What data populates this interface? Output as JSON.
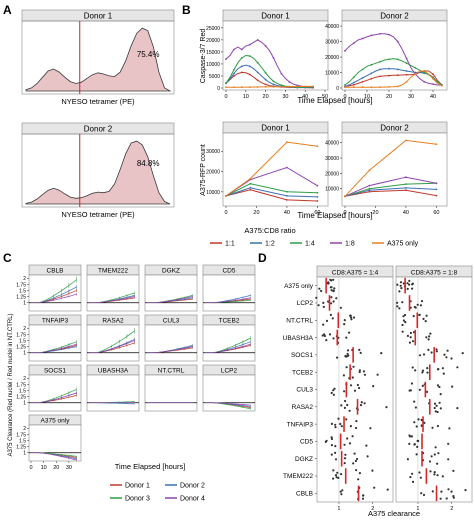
{
  "panel_letters": [
    "A",
    "B",
    "C",
    "D"
  ],
  "colors": {
    "hist_fill": "#e8c4c6",
    "hist_line": "#3a3a3a",
    "gate": "#c0272d",
    "donor1": "#c0392b",
    "donor2": "#3b6fb6",
    "donor3": "#2e9e44",
    "donor4": "#8e44ad",
    "r11": "#c0392b",
    "r12": "#3b6fb6",
    "r14": "#2e9e44",
    "r18": "#8e44ad",
    "ronly": "#e67e22",
    "strip_bg": "#e6e6e6",
    "median": "#d62728",
    "point": "#333333"
  },
  "chart_data": [
    {
      "id": "A",
      "type": "area",
      "xlabel": "NYESO tetramer (PE)",
      "panels": [
        {
          "title": "Donor 1",
          "percent": "75.4%",
          "density": [
            0.02,
            0.05,
            0.12,
            0.22,
            0.32,
            0.35,
            0.3,
            0.22,
            0.15,
            0.12,
            0.14,
            0.2,
            0.26,
            0.29,
            0.27,
            0.24,
            0.23,
            0.3,
            0.48,
            0.72,
            0.92,
            1.0,
            0.96,
            0.7,
            0.3,
            0.05,
            0.0
          ]
        },
        {
          "title": "Donor 2",
          "percent": "84.8%",
          "density": [
            0.01,
            0.03,
            0.08,
            0.15,
            0.22,
            0.25,
            0.22,
            0.16,
            0.11,
            0.09,
            0.1,
            0.13,
            0.17,
            0.19,
            0.18,
            0.2,
            0.32,
            0.55,
            0.8,
            0.97,
            1.0,
            0.94,
            0.75,
            0.45,
            0.18,
            0.04,
            0.0
          ]
        }
      ]
    },
    {
      "id": "B",
      "type": "line",
      "xlabel": "Time Elapsed [hours]",
      "legend_title": "A375:CD8 ratio",
      "legend_items": [
        "1:1",
        "1:2",
        "1:4",
        "1:8",
        "A375 only"
      ],
      "top": {
        "ylabel": "Caspase-3/7 Red",
        "x": [
          0,
          2,
          4,
          6,
          8,
          10,
          12,
          14,
          16,
          18,
          20,
          22,
          24,
          26,
          28,
          30,
          32,
          34,
          36,
          38,
          40,
          42,
          44
        ],
        "panels": [
          {
            "title": "Donor 1",
            "xlim": [
              0,
              50
            ],
            "xticks": [
              0,
              10,
              20,
              30,
              40,
              50
            ],
            "ylim": [
              0,
              27000
            ],
            "yticks": [
              0,
              5000,
              10000,
              15000,
              20000,
              25000
            ],
            "series": [
              {
                "name": "1:1",
                "y": [
                  2000,
                  3500,
                  5000,
                  6000,
                  6500,
                  6300,
                  5600,
                  4500,
                  3200,
                  2200,
                  1500,
                  1000,
                  700,
                  500,
                  400,
                  300,
                  250,
                  200,
                  180,
                  160,
                  150,
                  140,
                  130
                ]
              },
              {
                "name": "1:2",
                "y": [
                  2000,
                  3800,
                  6000,
                  8000,
                  9000,
                  9500,
                  9000,
                  8000,
                  6500,
                  5000,
                  3500,
                  2300,
                  1500,
                  1000,
                  700,
                  500,
                  400,
                  300,
                  250,
                  220,
                  200,
                  180,
                  170
                ]
              },
              {
                "name": "1:4",
                "y": [
                  2000,
                  4500,
                  7500,
                  10500,
                  12500,
                  13500,
                  13300,
                  12300,
                  10500,
                  8500,
                  6300,
                  4300,
                  2800,
                  1800,
                  1200,
                  800,
                  600,
                  450,
                  350,
                  300,
                  270,
                  250,
                  230
                ]
              },
              {
                "name": "1:8",
                "y": [
                  12000,
                  13500,
                  16000,
                  17000,
                  16000,
                  17500,
                  18000,
                  19000,
                  20000,
                  19000,
                  17500,
                  15500,
                  12500,
                  9000,
                  6000,
                  4000,
                  2500,
                  1600,
                  1100,
                  800,
                  600,
                  500,
                  450
                ]
              },
              {
                "name": "A375 only",
                "y": [
                  300,
                  300,
                  300,
                  320,
                  340,
                  360,
                  380,
                  400,
                  420,
                  440,
                  460,
                  480,
                  500,
                  520,
                  540,
                  560,
                  580,
                  600,
                  620,
                  640,
                  650,
                  660,
                  670
                ]
              }
            ]
          },
          {
            "title": "Donor 2",
            "xlim": [
              0,
              45
            ],
            "xticks": [
              0,
              10,
              20,
              30,
              40
            ],
            "ylim": [
              0,
              42000
            ],
            "yticks": [
              0,
              10000,
              20000,
              30000,
              40000
            ],
            "series": [
              {
                "name": "1:1",
                "y": [
                  1000,
                  1500,
                  2000,
                  3000,
                  4000,
                  5000,
                  6000,
                  7000,
                  7500,
                  7800,
                  8000,
                  8200,
                  8300,
                  8400,
                  8500,
                  8600,
                  9000,
                  10000,
                  11000,
                  11000,
                  9000,
                  5000,
                  2000
                ]
              },
              {
                "name": "1:2",
                "y": [
                  1000,
                  2000,
                  3500,
                  5000,
                  6500,
                  8000,
                  9500,
                  11000,
                  12000,
                  12500,
                  12500,
                  12500,
                  12000,
                  11500,
                  11000,
                  10500,
                  10000,
                  10000,
                  9500,
                  9000,
                  7000,
                  4000,
                  2000
                ]
              },
              {
                "name": "1:4",
                "y": [
                  2000,
                  4000,
                  7000,
                  10000,
                  12000,
                  14000,
                  15000,
                  16000,
                  17000,
                  18000,
                  18500,
                  19000,
                  18500,
                  17500,
                  16000,
                  14500,
                  13000,
                  11500,
                  10000,
                  8500,
                  6500,
                  4000,
                  2000
                ]
              },
              {
                "name": "1:8",
                "y": [
                  24000,
                  27000,
                  29000,
                  31000,
                  32000,
                  33000,
                  34000,
                  34500,
                  35000,
                  35000,
                  34500,
                  33000,
                  30000,
                  25000,
                  19000,
                  13000,
                  9000,
                  6000,
                  4000,
                  3000,
                  2500,
                  2000,
                  1800
                ]
              },
              {
                "name": "A375 only",
                "y": [
                  500,
                  500,
                  500,
                  500,
                  500,
                  500,
                  500,
                  500,
                  600,
                  600,
                  700,
                  800,
                  1000,
                  2000,
                  4000,
                  7000,
                  9000,
                  11000,
                  11000,
                  9000,
                  6000,
                  3000,
                  1500
                ]
              }
            ]
          }
        ]
      },
      "bottom": {
        "ylabel": "A375-RFP count",
        "x": [
          0,
          16,
          40,
          60
        ],
        "panels": [
          {
            "title": "Donor 1",
            "xlim": [
              0,
              65
            ],
            "xticks": [
              0,
              20,
              40,
              60
            ],
            "ylim": [
              4000,
              38000
            ],
            "yticks": [
              10000,
              20000,
              30000
            ],
            "series": [
              {
                "name": "1:1",
                "y": [
                  8000,
                  11000,
                  6000,
                  5500
                ]
              },
              {
                "name": "1:2",
                "y": [
                  8000,
                  12000,
                  8000,
                  7500
                ]
              },
              {
                "name": "1:4",
                "y": [
                  8000,
                  14000,
                  10000,
                  9500
                ]
              },
              {
                "name": "1:8",
                "y": [
                  8000,
                  16000,
                  22000,
                  13000
                ]
              },
              {
                "name": "A375 only",
                "y": [
                  8000,
                  16500,
                  34500,
                  32500
                ]
              }
            ]
          },
          {
            "title": "Donor 2",
            "xlim": [
              0,
              65
            ],
            "xticks": [
              0,
              20,
              40,
              60
            ],
            "ylim": [
              0,
              45000
            ],
            "yticks": [
              10000,
              20000,
              30000,
              40000
            ],
            "series": [
              {
                "name": "1:1",
                "y": [
                  5000,
                  8000,
                  9000,
                  5500
                ]
              },
              {
                "name": "1:2",
                "y": [
                  5000,
                  9000,
                  10500,
                  9500
                ]
              },
              {
                "name": "1:4",
                "y": [
                  5000,
                  10000,
                  13000,
                  13500
                ]
              },
              {
                "name": "1:8",
                "y": [
                  5000,
                  12000,
                  17500,
                  13500
                ]
              },
              {
                "name": "A375 only",
                "y": [
                  5000,
                  22000,
                  41500,
                  39000
                ]
              }
            ]
          }
        ]
      }
    },
    {
      "id": "C",
      "type": "line",
      "ylabel": "A375 Clearance (Red nuclei / Red nuclei in NT.CTRL)",
      "xlabel": "Time Elapsed [hours]",
      "xticks": [
        0,
        10,
        20,
        30
      ],
      "ylim": [
        0.7,
        2.1
      ],
      "yticks": [
        1.0,
        1.25,
        1.5,
        1.75,
        2.0
      ],
      "legend_items": [
        "Donor 1",
        "Donor 2",
        "Donor 3",
        "Donor 4"
      ],
      "panels": [
        {
          "title": "CBLB",
          "finals": [
            1.5,
            1.65,
            1.95,
            1.35
          ]
        },
        {
          "title": "TMEM222",
          "finals": [
            1.2,
            1.3,
            1.4,
            1.25
          ]
        },
        {
          "title": "DGKZ",
          "finals": [
            1.15,
            1.2,
            1.3,
            1.25
          ]
        },
        {
          "title": "CD5",
          "finals": [
            1.15,
            1.3,
            1.1,
            1.2
          ]
        },
        {
          "title": "TNFAIP3",
          "finals": [
            1.3,
            1.25,
            1.45,
            1.35
          ]
        },
        {
          "title": "RASA2",
          "finals": [
            1.4,
            1.55,
            1.9,
            1.5
          ]
        },
        {
          "title": "CUL3",
          "finals": [
            1.2,
            1.3,
            1.25,
            1.25
          ]
        },
        {
          "title": "TCEB2",
          "finals": [
            1.3,
            1.45,
            1.6,
            1.35
          ]
        },
        {
          "title": "SOCS1",
          "finals": [
            1.3,
            1.4,
            1.55,
            1.4
          ]
        },
        {
          "title": "UBASH3A",
          "finals": [
            1.0,
            0.95,
            1.05,
            1.0
          ]
        },
        {
          "title": "NT.CTRL",
          "finals": [
            1.0,
            1.0,
            1.0,
            1.0
          ]
        },
        {
          "title": "LCP2",
          "finals": [
            0.8,
            0.85,
            0.75,
            0.9
          ]
        },
        {
          "title": "A375 only",
          "finals": [
            0.8,
            0.75,
            0.85,
            0.7
          ]
        }
      ]
    },
    {
      "id": "D",
      "type": "scatter",
      "xlabel": "A375 clearance",
      "xticks": [
        1,
        2
      ],
      "xlim": [
        0.35,
        2.6
      ],
      "categories": [
        "A375 only",
        "LCP2",
        "NT.CTRL",
        "UBASH3A",
        "SOCS1",
        "TCEB2",
        "CUL3",
        "RASA2",
        "TNFAIP3",
        "CD5",
        "DGKZ",
        "TMEM222",
        "CBLB"
      ],
      "panels": [
        {
          "title": "CD8:A375 = 1:4",
          "medians": [
            0.62,
            0.72,
            0.98,
            0.95,
            1.42,
            1.33,
            1.22,
            1.55,
            1.15,
            1.05,
            1.08,
            1.2,
            1.58
          ]
        },
        {
          "title": "CD8:A375 = 1:8",
          "medians": [
            0.62,
            0.75,
            0.98,
            0.92,
            1.48,
            1.35,
            1.22,
            1.35,
            1.15,
            1.12,
            1.12,
            1.25,
            1.55
          ]
        }
      ]
    }
  ]
}
